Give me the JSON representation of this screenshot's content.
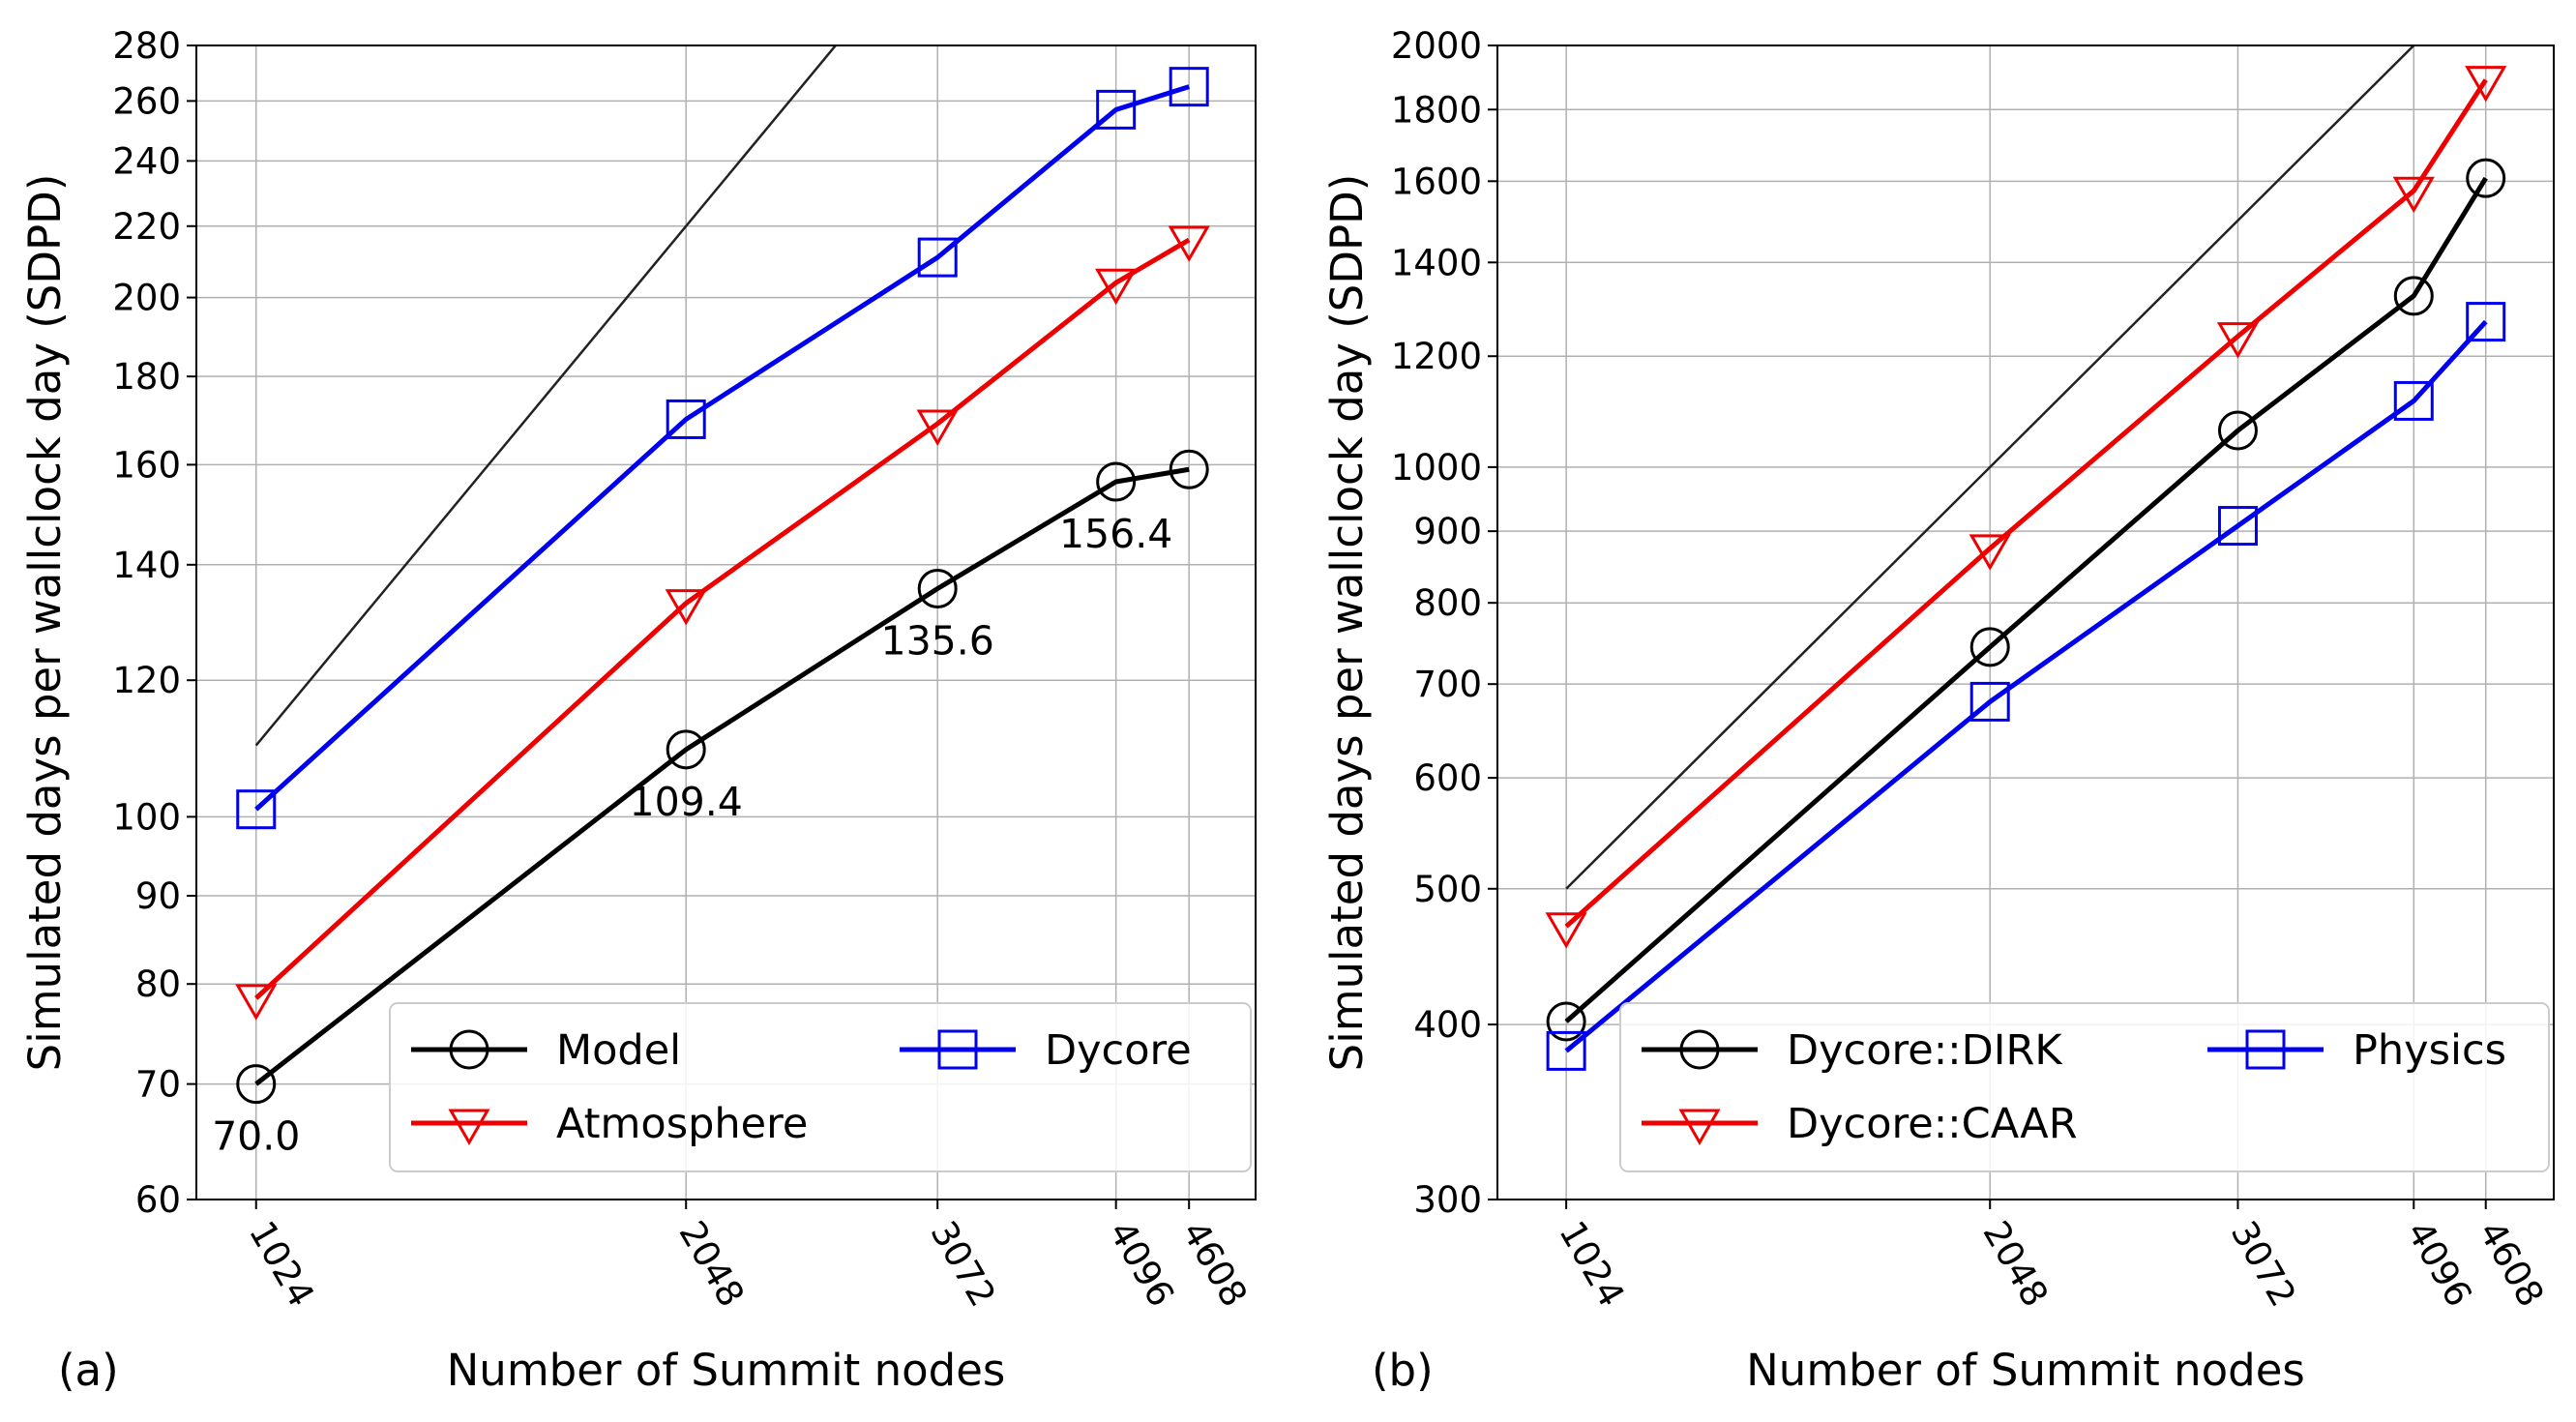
{
  "chart_data": [
    {
      "type": "line",
      "panel_label": "(a)",
      "xlabel": "Number of Summit nodes",
      "ylabel": "Simulated days per wallclock day (SDPD)",
      "x_scale": "log",
      "y_scale": "log",
      "x": [
        1024,
        2048,
        3072,
        4096,
        4608
      ],
      "x_tick_labels": [
        "1024",
        "2048",
        "3072",
        "4096",
        "4608"
      ],
      "ylim": [
        60,
        280
      ],
      "y_ticks": [
        60,
        70,
        80,
        90,
        100,
        120,
        140,
        160,
        180,
        200,
        220,
        240,
        260,
        280
      ],
      "y_tick_labels": [
        "60",
        "70",
        "80",
        "90",
        "100",
        "120",
        "140",
        "160",
        "180",
        "200",
        "220",
        "240",
        "260",
        "280"
      ],
      "grid": true,
      "legend_position": "lower-right",
      "legend_columns": 2,
      "ideal_line": {
        "x": [
          1024,
          3072
        ],
        "y": [
          110,
          330
        ],
        "color": "#222222"
      },
      "series": [
        {
          "name": "Model",
          "color": "#000000",
          "marker": "circle",
          "values": [
            70.0,
            109.4,
            135.6,
            156.4,
            159
          ]
        },
        {
          "name": "Atmosphere",
          "color": "#ee0000",
          "marker": "triangle-down",
          "values": [
            78.5,
            133,
            169,
            204,
            216
          ]
        },
        {
          "name": "Dycore",
          "color": "#0000ee",
          "marker": "square",
          "values": [
            101,
            170,
            211,
            257,
            265
          ]
        }
      ],
      "annotations": [
        {
          "text": "70.0",
          "x": 1024,
          "y": 70.0,
          "anchor": "below"
        },
        {
          "text": "109.4",
          "x": 2048,
          "y": 109.4,
          "anchor": "below"
        },
        {
          "text": "135.6",
          "x": 3072,
          "y": 135.6,
          "anchor": "below"
        },
        {
          "text": "156.4",
          "x": 4096,
          "y": 156.4,
          "anchor": "below"
        }
      ]
    },
    {
      "type": "line",
      "panel_label": "(b)",
      "xlabel": "Number of Summit nodes",
      "ylabel": "Simulated days per wallclock day (SDPD)",
      "x_scale": "log",
      "y_scale": "log",
      "x": [
        1024,
        2048,
        3072,
        4096,
        4608
      ],
      "x_tick_labels": [
        "1024",
        "2048",
        "3072",
        "4096",
        "4608"
      ],
      "ylim": [
        300,
        2000
      ],
      "y_ticks": [
        300,
        400,
        500,
        600,
        700,
        800,
        900,
        1000,
        1200,
        1400,
        1600,
        1800,
        2000
      ],
      "y_tick_labels": [
        "300",
        "400",
        "500",
        "600",
        "700",
        "800",
        "900",
        "1000",
        "1200",
        "1400",
        "1600",
        "1800",
        "2000"
      ],
      "grid": true,
      "legend_position": "lower-right",
      "legend_columns": 2,
      "ideal_line": {
        "x": [
          1024,
          4096
        ],
        "y": [
          500,
          2000
        ],
        "color": "#222222"
      },
      "series": [
        {
          "name": "Dycore::DIRK",
          "color": "#000000",
          "marker": "circle",
          "values": [
            402,
            744,
            1062,
            1325,
            1608
          ]
        },
        {
          "name": "Dycore::CAAR",
          "color": "#ee0000",
          "marker": "triangle-down",
          "values": [
            470,
            875,
            1240,
            1575,
            1890
          ]
        },
        {
          "name": "Physics",
          "color": "#0000ee",
          "marker": "square",
          "values": [
            383,
            680,
            908,
            1115,
            1270
          ]
        }
      ]
    }
  ]
}
